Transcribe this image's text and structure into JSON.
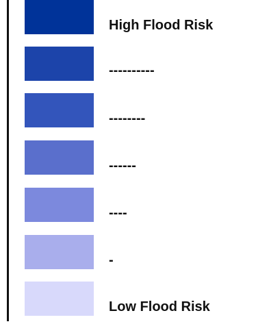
{
  "legend": {
    "items": [
      {
        "label": "High Flood Risk",
        "color": "#003399"
      },
      {
        "label": "----------",
        "color": "#1c44aa"
      },
      {
        "label": "--------",
        "color": "#3355bb"
      },
      {
        "label": "------",
        "color": "#5a6fcc"
      },
      {
        "label": "----",
        "color": "#7c89dd"
      },
      {
        "label": "-",
        "color": "#a9aeec"
      },
      {
        "label": "Low Flood Risk",
        "color": "#d8d9fb"
      }
    ]
  }
}
